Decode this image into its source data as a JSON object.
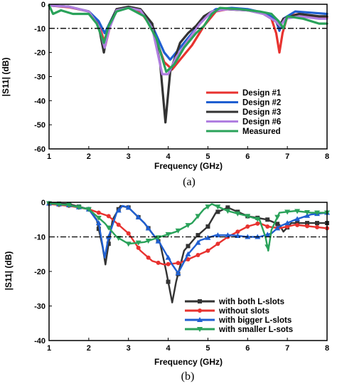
{
  "chart_data": [
    {
      "type": "line",
      "caption": "(a)",
      "xlabel": "Frequency (GHz)",
      "ylabel": "|S11| (dB)",
      "xlim": [
        1,
        8
      ],
      "ylim": [
        -60,
        0
      ],
      "xticks": [
        "1",
        "2",
        "3",
        "4",
        "5",
        "6",
        "7",
        "8"
      ],
      "yticks": [
        "0",
        "-10",
        "-20",
        "-30",
        "-40",
        "-50",
        "-60"
      ],
      "reference_line": -10,
      "legend_position": "bottom-right",
      "series": [
        {
          "name": "Design #1",
          "color": "#e8322f",
          "points": [
            [
              1,
              -0.5
            ],
            [
              1.5,
              -1.2
            ],
            [
              2.0,
              -3
            ],
            [
              2.25,
              -8
            ],
            [
              2.42,
              -17
            ],
            [
              2.55,
              -8
            ],
            [
              2.7,
              -2
            ],
            [
              3.0,
              -1.5
            ],
            [
              3.3,
              -3
            ],
            [
              3.6,
              -10
            ],
            [
              3.9,
              -24
            ],
            [
              4.1,
              -27
            ],
            [
              4.3,
              -23
            ],
            [
              4.6,
              -17
            ],
            [
              4.9,
              -9
            ],
            [
              5.2,
              -3
            ],
            [
              5.5,
              -2
            ],
            [
              6.0,
              -2.5
            ],
            [
              6.4,
              -3.5
            ],
            [
              6.6,
              -6
            ],
            [
              6.72,
              -12
            ],
            [
              6.8,
              -20
            ],
            [
              6.88,
              -12
            ],
            [
              7.0,
              -5
            ],
            [
              7.3,
              -4
            ],
            [
              7.8,
              -5.5
            ],
            [
              8.0,
              -5.5
            ]
          ]
        },
        {
          "name": "Design #2",
          "color": "#1f5fd1",
          "points": [
            [
              1,
              -0.5
            ],
            [
              1.5,
              -1
            ],
            [
              2.0,
              -3
            ],
            [
              2.25,
              -7
            ],
            [
              2.4,
              -12
            ],
            [
              2.55,
              -7
            ],
            [
              2.7,
              -2
            ],
            [
              3.0,
              -1.2
            ],
            [
              3.3,
              -2.5
            ],
            [
              3.6,
              -9
            ],
            [
              3.9,
              -20
            ],
            [
              4.05,
              -23
            ],
            [
              4.3,
              -18
            ],
            [
              4.6,
              -12
            ],
            [
              4.9,
              -6
            ],
            [
              5.2,
              -2
            ],
            [
              5.6,
              -1.5
            ],
            [
              6.0,
              -2
            ],
            [
              6.4,
              -3.5
            ],
            [
              6.7,
              -6
            ],
            [
              6.8,
              -11
            ],
            [
              6.9,
              -6
            ],
            [
              7.2,
              -3
            ],
            [
              7.6,
              -3.5
            ],
            [
              8.0,
              -4
            ]
          ]
        },
        {
          "name": "Design #3",
          "color": "#333333",
          "points": [
            [
              1,
              -0.5
            ],
            [
              1.5,
              -1
            ],
            [
              2.0,
              -3
            ],
            [
              2.25,
              -9
            ],
            [
              2.38,
              -20
            ],
            [
              2.5,
              -9
            ],
            [
              2.7,
              -2
            ],
            [
              3.0,
              -1
            ],
            [
              3.3,
              -2
            ],
            [
              3.6,
              -8
            ],
            [
              3.8,
              -25
            ],
            [
              3.93,
              -49
            ],
            [
              4.05,
              -28
            ],
            [
              4.3,
              -16
            ],
            [
              4.5,
              -12
            ],
            [
              4.7,
              -9
            ],
            [
              4.9,
              -5
            ],
            [
              5.1,
              -3
            ],
            [
              5.4,
              -2
            ],
            [
              6.0,
              -2.5
            ],
            [
              6.4,
              -4
            ],
            [
              6.7,
              -7
            ],
            [
              6.8,
              -9
            ],
            [
              6.9,
              -6
            ],
            [
              7.3,
              -4
            ],
            [
              7.8,
              -5
            ],
            [
              8.0,
              -5
            ]
          ]
        },
        {
          "name": "Design #6",
          "color": "#b07fe0",
          "points": [
            [
              1,
              -0.5
            ],
            [
              1.5,
              -1
            ],
            [
              2.0,
              -3
            ],
            [
              2.25,
              -9
            ],
            [
              2.4,
              -18
            ],
            [
              2.52,
              -10
            ],
            [
              2.7,
              -2.5
            ],
            [
              3.0,
              -1.5
            ],
            [
              3.3,
              -2.5
            ],
            [
              3.6,
              -10
            ],
            [
              3.85,
              -29
            ],
            [
              4.0,
              -29
            ],
            [
              4.2,
              -22
            ],
            [
              4.5,
              -15
            ],
            [
              4.8,
              -8
            ],
            [
              5.1,
              -3
            ],
            [
              5.5,
              -2
            ],
            [
              6.0,
              -2.5
            ],
            [
              6.4,
              -4
            ],
            [
              6.7,
              -7
            ],
            [
              6.82,
              -9
            ],
            [
              6.95,
              -6
            ],
            [
              7.3,
              -5
            ],
            [
              7.8,
              -6
            ],
            [
              8.0,
              -6
            ]
          ]
        },
        {
          "name": "Measured",
          "color": "#2aa25a",
          "points": [
            [
              1,
              -0.5
            ],
            [
              1.1,
              -4
            ],
            [
              1.3,
              -2.5
            ],
            [
              1.6,
              -4
            ],
            [
              2.0,
              -4
            ],
            [
              2.2,
              -8
            ],
            [
              2.38,
              -16
            ],
            [
              2.5,
              -9
            ],
            [
              2.7,
              -3
            ],
            [
              3.0,
              -1.5
            ],
            [
              3.4,
              -5
            ],
            [
              3.7,
              -14
            ],
            [
              3.95,
              -28
            ],
            [
              4.15,
              -25
            ],
            [
              4.4,
              -18
            ],
            [
              4.7,
              -12
            ],
            [
              4.9,
              -9
            ],
            [
              5.1,
              -4
            ],
            [
              5.3,
              -1.5
            ],
            [
              5.8,
              -2
            ],
            [
              6.3,
              -3
            ],
            [
              6.6,
              -4
            ],
            [
              6.78,
              -7
            ],
            [
              6.9,
              -10
            ],
            [
              7.0,
              -5
            ],
            [
              7.4,
              -6
            ],
            [
              7.8,
              -8
            ],
            [
              8.0,
              -8
            ]
          ]
        }
      ]
    },
    {
      "type": "line",
      "caption": "(b)",
      "xlabel": "Frequency (GHz)",
      "ylabel": "|S11| (dB)",
      "xlim": [
        1,
        8
      ],
      "ylim": [
        -40,
        0
      ],
      "xticks": [
        "1",
        "2",
        "3",
        "4",
        "5",
        "6",
        "7",
        "8"
      ],
      "yticks": [
        "0",
        "-10",
        "-20",
        "-30",
        "-40"
      ],
      "reference_line": -10,
      "legend_position": "bottom-right",
      "series": [
        {
          "name": "with both L-slots",
          "color": "#333333",
          "marker": "square",
          "points": [
            [
              1,
              -0.3
            ],
            [
              1.5,
              -0.5
            ],
            [
              2.0,
              -2
            ],
            [
              2.2,
              -5
            ],
            [
              2.35,
              -13
            ],
            [
              2.42,
              -18
            ],
            [
              2.5,
              -12
            ],
            [
              2.6,
              -5
            ],
            [
              2.8,
              -1
            ],
            [
              3.0,
              -1.5
            ],
            [
              3.4,
              -6
            ],
            [
              3.8,
              -12
            ],
            [
              3.95,
              -20
            ],
            [
              4.1,
              -29
            ],
            [
              4.2,
              -23
            ],
            [
              4.4,
              -14
            ],
            [
              4.7,
              -10
            ],
            [
              5.0,
              -7
            ],
            [
              5.2,
              -3
            ],
            [
              5.5,
              -1.5
            ],
            [
              6.0,
              -4
            ],
            [
              6.5,
              -5
            ],
            [
              6.8,
              -6.5
            ],
            [
              6.9,
              -8.5
            ],
            [
              7.1,
              -6
            ],
            [
              7.5,
              -6
            ],
            [
              8.0,
              -6
            ]
          ]
        },
        {
          "name": "without slots",
          "color": "#e8322f",
          "marker": "circle",
          "points": [
            [
              1,
              -0.5
            ],
            [
              1.5,
              -1
            ],
            [
              2.0,
              -2
            ],
            [
              2.5,
              -4
            ],
            [
              3.0,
              -9
            ],
            [
              3.3,
              -14
            ],
            [
              3.6,
              -17
            ],
            [
              3.9,
              -18
            ],
            [
              4.3,
              -17.5
            ],
            [
              4.6,
              -16
            ],
            [
              5.0,
              -14
            ],
            [
              5.5,
              -10
            ],
            [
              6.0,
              -7
            ],
            [
              6.3,
              -6
            ],
            [
              6.5,
              -7
            ],
            [
              6.8,
              -7.5
            ],
            [
              7.2,
              -6.5
            ],
            [
              7.6,
              -7
            ],
            [
              8.0,
              -7.5
            ]
          ]
        },
        {
          "name": "with bigger L-slots",
          "color": "#1f5fd1",
          "marker": "triangle",
          "points": [
            [
              1,
              -0.3
            ],
            [
              1.5,
              -0.8
            ],
            [
              2.0,
              -2
            ],
            [
              2.25,
              -6
            ],
            [
              2.4,
              -16
            ],
            [
              2.5,
              -10
            ],
            [
              2.7,
              -3
            ],
            [
              2.85,
              -1
            ],
            [
              3.0,
              -1.5
            ],
            [
              3.4,
              -6
            ],
            [
              3.8,
              -12
            ],
            [
              4.1,
              -18
            ],
            [
              4.25,
              -20.5
            ],
            [
              4.5,
              -15
            ],
            [
              4.8,
              -11
            ],
            [
              5.2,
              -9.5
            ],
            [
              5.6,
              -9.5
            ],
            [
              6.0,
              -10
            ],
            [
              6.3,
              -10
            ],
            [
              6.6,
              -9
            ],
            [
              6.8,
              -7
            ],
            [
              7.2,
              -5
            ],
            [
              7.6,
              -3.5
            ],
            [
              8.0,
              -3
            ]
          ]
        },
        {
          "name": "with smaller L-sots",
          "color": "#2aa25a",
          "marker": "down-triangle",
          "points": [
            [
              1,
              -0.3
            ],
            [
              1.5,
              -0.8
            ],
            [
              2.0,
              -2
            ],
            [
              2.4,
              -6
            ],
            [
              2.7,
              -10
            ],
            [
              3.0,
              -12
            ],
            [
              3.4,
              -11.5
            ],
            [
              3.8,
              -10
            ],
            [
              4.2,
              -8.5
            ],
            [
              4.6,
              -6
            ],
            [
              4.9,
              -2
            ],
            [
              5.1,
              -0.5
            ],
            [
              5.5,
              -2.5
            ],
            [
              6.0,
              -4
            ],
            [
              6.3,
              -5
            ],
            [
              6.45,
              -10
            ],
            [
              6.52,
              -14
            ],
            [
              6.6,
              -8
            ],
            [
              6.8,
              -3
            ],
            [
              7.2,
              -2.5
            ],
            [
              7.6,
              -3
            ],
            [
              8.0,
              -3
            ]
          ]
        }
      ]
    }
  ]
}
